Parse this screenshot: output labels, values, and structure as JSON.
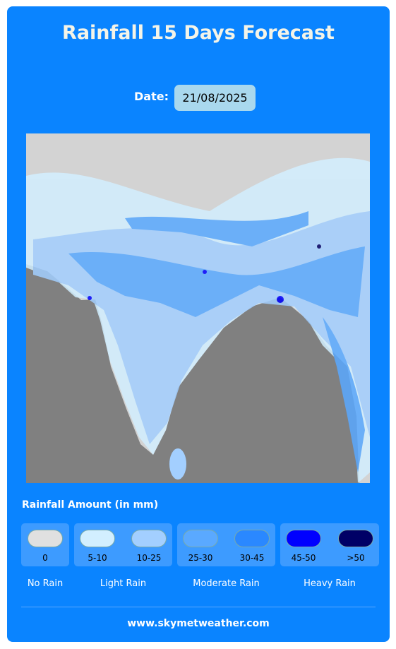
{
  "header": {
    "title": "Rainfall 15 Days Forecast"
  },
  "date": {
    "label": "Date:",
    "value": "21/08/2025"
  },
  "legend": {
    "title": "Rainfall Amount (in mm)",
    "groups": [
      {
        "name": "No Rain",
        "items": [
          {
            "label": "0",
            "color": "#e0e0e0"
          }
        ]
      },
      {
        "name": "Light Rain",
        "items": [
          {
            "label": "5-10",
            "color": "#d2efff"
          },
          {
            "label": "10-25",
            "color": "#a3cfff"
          }
        ]
      },
      {
        "name": "Moderate Rain",
        "items": [
          {
            "label": "25-30",
            "color": "#5aa9ff"
          },
          {
            "label": "30-45",
            "color": "#2a88ff"
          }
        ]
      },
      {
        "name": "Heavy Rain",
        "items": [
          {
            "label": "45-50",
            "color": "#0000ff"
          },
          {
            "label": ">50",
            "color": "#000066"
          }
        ]
      }
    ]
  },
  "footer": {
    "text": "www.skymetweather.com"
  }
}
